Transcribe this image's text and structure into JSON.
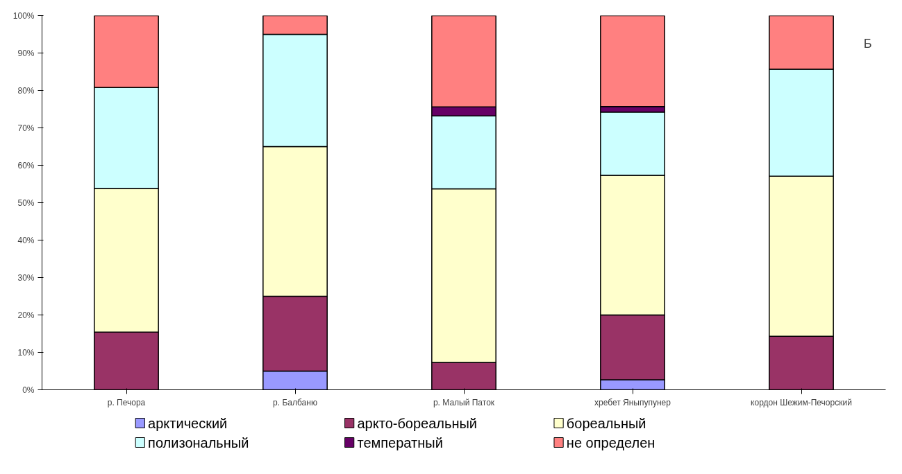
{
  "chart_data": {
    "type": "bar",
    "stacked": true,
    "categories": [
      "р. Печора",
      "р. Балбаню",
      "р. Малый Паток",
      "хребет Яныпупунер",
      "кордон Шежим-Печорский"
    ],
    "series": [
      {
        "name": "арктический",
        "color": "#9999ff",
        "values": [
          0,
          5,
          0,
          2.7,
          0
        ]
      },
      {
        "name": "аркто-бореальный",
        "color": "#993366",
        "values": [
          15.4,
          20,
          7.3,
          17.3,
          14.3
        ]
      },
      {
        "name": "бореальный",
        "color": "#ffffcc",
        "values": [
          38.4,
          40,
          46.4,
          37.3,
          42.8
        ]
      },
      {
        "name": "полизональный",
        "color": "#ccffff",
        "values": [
          27.0,
          30,
          19.5,
          16.9,
          28.6
        ]
      },
      {
        "name": "температный",
        "color": "#660066",
        "values": [
          0,
          0,
          2.4,
          1.5,
          0
        ]
      },
      {
        "name": "не определен",
        "color": "#ff8080",
        "values": [
          19.2,
          5,
          24.4,
          24.3,
          14.3
        ]
      }
    ],
    "ylim": [
      0,
      100
    ],
    "yticks": [
      {
        "value": 0,
        "label": "0%"
      },
      {
        "value": 10,
        "label": "10%"
      },
      {
        "value": 20,
        "label": "20%"
      },
      {
        "value": 30,
        "label": "30%"
      },
      {
        "value": 40,
        "label": "40%"
      },
      {
        "value": 50,
        "label": "50%"
      },
      {
        "value": 60,
        "label": "60%"
      },
      {
        "value": 70,
        "label": "70%"
      },
      {
        "value": 80,
        "label": "80%"
      },
      {
        "value": 90,
        "label": "90%"
      },
      {
        "value": 100,
        "label": "100%"
      }
    ],
    "annotations": [
      "Б"
    ],
    "legend": "bottom",
    "grid": false
  }
}
